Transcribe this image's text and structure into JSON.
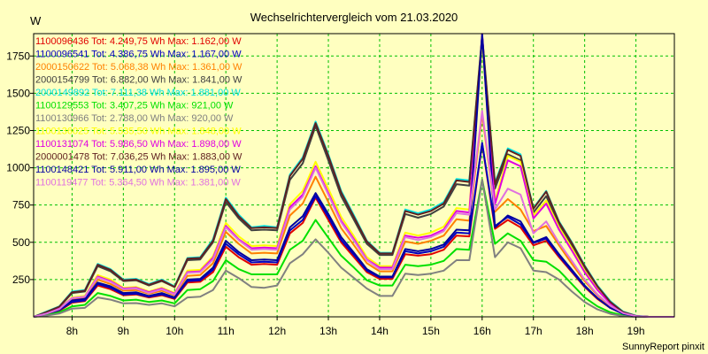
{
  "chart_data": {
    "type": "line",
    "title": "Wechselrichtervergleich vom 21.03.2020",
    "ylabel": "W",
    "footer": "SunnyReport pinxit",
    "ylim": [
      0,
      1900
    ],
    "xlim": [
      7.25,
      19.75
    ],
    "yticks": [
      250,
      500,
      750,
      1000,
      1250,
      1500,
      1750
    ],
    "xticks": [
      8,
      9,
      10,
      11,
      12,
      13,
      14,
      15,
      16,
      17,
      18,
      19
    ],
    "xtick_labels": [
      "8h",
      "9h",
      "10h",
      "11h",
      "12h",
      "13h",
      "14h",
      "15h",
      "16h",
      "17h",
      "18h",
      "19h"
    ],
    "grid": true,
    "legend_position": "top-left",
    "x": [
      7.25,
      7.5,
      7.75,
      8.0,
      8.25,
      8.5,
      8.75,
      9.0,
      9.25,
      9.5,
      9.75,
      10.0,
      10.25,
      10.5,
      10.75,
      11.0,
      11.25,
      11.5,
      11.75,
      12.0,
      12.25,
      12.5,
      12.75,
      13.0,
      13.25,
      13.5,
      13.75,
      14.0,
      14.25,
      14.5,
      14.75,
      15.0,
      15.25,
      15.5,
      15.75,
      16.0,
      16.25,
      16.5,
      16.75,
      17.0,
      17.25,
      17.5,
      17.75,
      18.0,
      18.25,
      18.5,
      18.75,
      19.0,
      19.25,
      19.5,
      19.75
    ],
    "series": [
      {
        "name": "1100096436 Tot: 4.249,75 Wh Max: 1.162,00 W",
        "color": "#e00000",
        "values": [
          0,
          15,
          40,
          95,
          105,
          210,
          185,
          145,
          150,
          130,
          145,
          120,
          230,
          235,
          300,
          470,
          400,
          350,
          355,
          350,
          560,
          630,
          800,
          650,
          500,
          400,
          300,
          255,
          255,
          420,
          410,
          420,
          450,
          545,
          540,
          1162,
          590,
          650,
          600,
          480,
          510,
          400,
          300,
          200,
          120,
          60,
          20,
          5,
          0,
          0,
          0
        ]
      },
      {
        "name": "1100096541 Tot: 4.386,75 Wh Max: 1.167,00 W",
        "color": "#0000c0",
        "values": [
          0,
          18,
          45,
          100,
          110,
          220,
          195,
          150,
          155,
          135,
          150,
          125,
          240,
          245,
          315,
          490,
          420,
          365,
          370,
          365,
          580,
          650,
          810,
          670,
          515,
          415,
          310,
          265,
          265,
          440,
          425,
          440,
          470,
          565,
          560,
          1167,
          610,
          670,
          620,
          495,
          525,
          410,
          305,
          205,
          125,
          60,
          20,
          5,
          0,
          0,
          0
        ]
      },
      {
        "name": "2000150622 Tot: 5.068,38 Wh Max: 1.361,00 W",
        "color": "#ff8000",
        "values": [
          0,
          20,
          50,
          115,
          125,
          250,
          220,
          175,
          180,
          155,
          175,
          145,
          275,
          280,
          360,
          570,
          490,
          425,
          430,
          425,
          680,
          760,
          940,
          770,
          595,
          480,
          360,
          305,
          305,
          505,
          490,
          510,
          545,
          655,
          645,
          1361,
          705,
          790,
          720,
          575,
          610,
          480,
          355,
          240,
          145,
          70,
          25,
          5,
          0,
          0,
          0
        ]
      },
      {
        "name": "2000154799 Tot: 6.882,00 Wh Max: 1.841,00 W",
        "color": "#404040",
        "values": [
          0,
          30,
          65,
          160,
          170,
          340,
          305,
          240,
          245,
          210,
          240,
          200,
          380,
          385,
          500,
          770,
          660,
          580,
          585,
          580,
          920,
          1030,
          1280,
          1050,
          810,
          650,
          490,
          415,
          415,
          690,
          665,
          690,
          740,
          890,
          880,
          1841,
          860,
          1090,
          1050,
          700,
          810,
          620,
          480,
          330,
          200,
          100,
          30,
          5,
          0,
          0,
          0
        ]
      },
      {
        "name": "2000149892 Tot: 7.111,38 Wh Max: 1.881,00 W",
        "color": "#00e0e0",
        "values": [
          0,
          35,
          70,
          170,
          180,
          355,
          320,
          250,
          255,
          220,
          250,
          205,
          395,
          400,
          520,
          800,
          685,
          600,
          610,
          600,
          955,
          1070,
          1310,
          1090,
          845,
          680,
          510,
          430,
          430,
          720,
          695,
          720,
          770,
          925,
          915,
          1881,
          900,
          1130,
          1090,
          730,
          845,
          640,
          500,
          345,
          210,
          105,
          35,
          8,
          0,
          0,
          0
        ]
      },
      {
        "name": "1100129553 Tot: 3.407,25 Wh Max: 921,00 W",
        "color": "#00e000",
        "values": [
          0,
          10,
          30,
          70,
          80,
          160,
          140,
          110,
          115,
          100,
          110,
          90,
          180,
          185,
          240,
          380,
          320,
          285,
          285,
          285,
          450,
          510,
          650,
          530,
          410,
          330,
          245,
          210,
          210,
          350,
          340,
          350,
          375,
          455,
          450,
          921,
          490,
          560,
          510,
          380,
          370,
          310,
          220,
          130,
          70,
          30,
          10,
          2,
          0,
          0,
          0
        ]
      },
      {
        "name": "1100130966 Tot: 2.788,00 Wh Max: 920,00 W",
        "color": "#808080",
        "values": [
          0,
          8,
          22,
          55,
          60,
          130,
          115,
          90,
          92,
          80,
          90,
          70,
          130,
          135,
          180,
          310,
          260,
          200,
          195,
          210,
          360,
          420,
          520,
          430,
          330,
          260,
          190,
          140,
          140,
          290,
          280,
          290,
          310,
          380,
          380,
          920,
          400,
          500,
          460,
          310,
          300,
          250,
          170,
          100,
          50,
          20,
          5,
          0,
          0,
          0,
          0
        ]
      },
      {
        "name": "1100136025 Tot: 5.535,50 Wh Max: 1.848,00 W",
        "color": "#ffff00",
        "values": [
          0,
          24,
          55,
          130,
          140,
          280,
          250,
          195,
          200,
          170,
          195,
          160,
          310,
          315,
          405,
          630,
          540,
          475,
          480,
          475,
          755,
          845,
          1040,
          860,
          670,
          540,
          400,
          340,
          340,
          565,
          545,
          565,
          605,
          730,
          720,
          1848,
          775,
          1080,
          1040,
          680,
          780,
          600,
          460,
          310,
          185,
          90,
          30,
          5,
          0,
          0,
          0
        ]
      },
      {
        "name": "1100131074 Tot: 5.986,50 Wh Max: 1.898,00 W",
        "color": "#e000e0",
        "values": [
          0,
          24,
          55,
          125,
          135,
          270,
          240,
          190,
          195,
          165,
          190,
          155,
          300,
          305,
          395,
          610,
          520,
          460,
          465,
          460,
          735,
          820,
          1010,
          830,
          645,
          520,
          385,
          330,
          330,
          545,
          530,
          545,
          585,
          710,
          700,
          1898,
          755,
          1050,
          1010,
          660,
          760,
          585,
          445,
          300,
          180,
          90,
          30,
          5,
          0,
          0,
          0
        ]
      },
      {
        "name": "2000001478 Tot: 7.036,25 Wh Max: 1.883,00 W",
        "color": "#602020",
        "values": [
          0,
          32,
          68,
          165,
          175,
          350,
          315,
          245,
          250,
          215,
          245,
          200,
          390,
          395,
          510,
          790,
          675,
          595,
          600,
          595,
          945,
          1060,
          1300,
          1080,
          835,
          670,
          505,
          425,
          425,
          710,
          685,
          710,
          760,
          915,
          905,
          1883,
          890,
          1120,
          1080,
          725,
          840,
          635,
          495,
          340,
          205,
          100,
          32,
          6,
          0,
          0,
          0
        ]
      },
      {
        "name": "1100148421 Tot: 5.911,00 Wh Max: 1.895,00 W",
        "color": "#0000a0",
        "values": [
          0,
          22,
          50,
          110,
          120,
          230,
          205,
          160,
          165,
          140,
          160,
          130,
          250,
          255,
          330,
          510,
          435,
          380,
          385,
          380,
          600,
          675,
          830,
          690,
          535,
          430,
          320,
          270,
          270,
          455,
          440,
          455,
          485,
          585,
          580,
          1895,
          600,
          680,
          640,
          500,
          535,
          420,
          315,
          210,
          125,
          60,
          20,
          5,
          0,
          0,
          0
        ]
      },
      {
        "name": "1100119477 Tot: 5.364,50 Wh Max: 1.381,00 W",
        "color": "#e070e0",
        "values": [
          0,
          22,
          52,
          125,
          135,
          265,
          235,
          185,
          190,
          160,
          185,
          150,
          295,
          300,
          385,
          600,
          515,
          450,
          455,
          450,
          720,
          805,
          1000,
          820,
          635,
          510,
          380,
          320,
          320,
          535,
          515,
          535,
          575,
          695,
          685,
          1381,
          720,
          860,
          820,
          560,
          640,
          495,
          375,
          250,
          150,
          75,
          25,
          5,
          0,
          0,
          0
        ]
      }
    ]
  }
}
